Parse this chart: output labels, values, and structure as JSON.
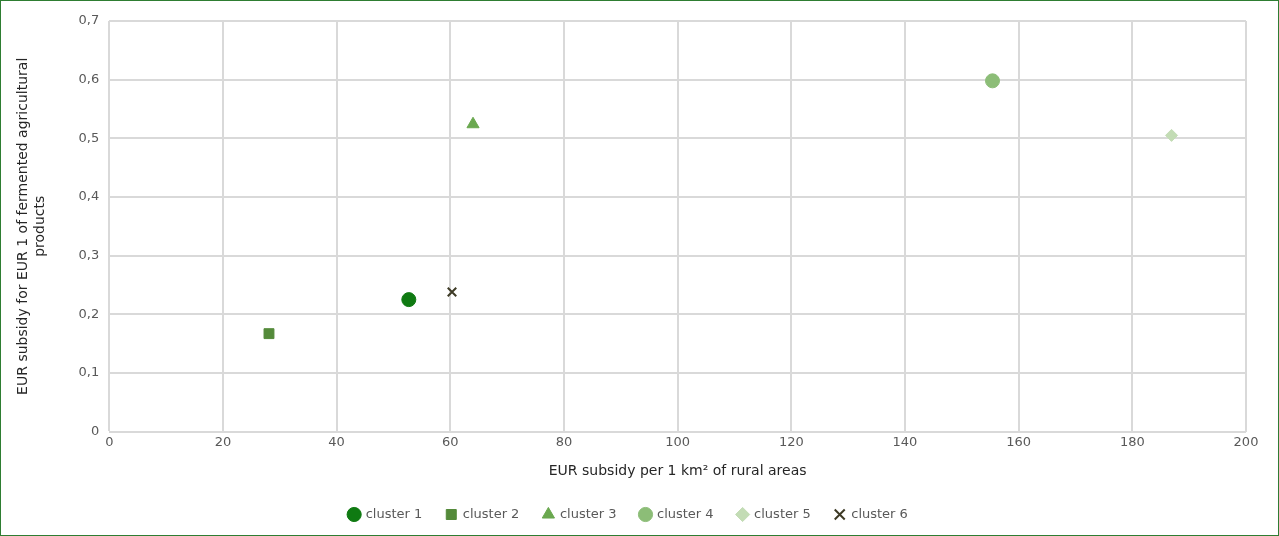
{
  "chart_data": {
    "type": "scatter",
    "xlabel": "EUR subsidy per 1 km² of rural areas",
    "ylabel": "EUR subsidy for EUR 1 of fermented agricultural products",
    "series": [
      {
        "name": "cluster 1",
        "color": "#0f7a12",
        "marker": "circle",
        "x": [
          52.7
        ],
        "values": [
          0.225
        ]
      },
      {
        "name": "cluster 2",
        "color": "#548a3a",
        "marker": "square",
        "x": [
          28.1
        ],
        "values": [
          0.167
        ]
      },
      {
        "name": "cluster 3",
        "color": "#6aa84f",
        "marker": "triangle",
        "x": [
          64.0
        ],
        "values": [
          0.524
        ]
      },
      {
        "name": "cluster 4",
        "color": "#8cbd77",
        "marker": "circle",
        "x": [
          155.4
        ],
        "values": [
          0.598
        ]
      },
      {
        "name": "cluster 5",
        "color": "#c3dcb5",
        "marker": "diamond",
        "x": [
          186.9
        ],
        "values": [
          0.505
        ]
      },
      {
        "name": "cluster 6",
        "color": "#3d3a25",
        "marker": "cross",
        "x": [
          60.3
        ],
        "values": [
          0.238
        ]
      }
    ],
    "xlim": [
      0,
      200
    ],
    "xticks": [
      0,
      20,
      40,
      60,
      80,
      100,
      120,
      140,
      160,
      180,
      200
    ],
    "ylim": [
      0,
      0.7
    ],
    "yticks": [
      0,
      {
        "value": 0.1,
        "label": "0,1"
      },
      {
        "value": 0.2,
        "label": "0,2"
      },
      {
        "value": 0.3,
        "label": "0,3"
      },
      {
        "value": 0.4,
        "label": "0,4"
      },
      {
        "value": 0.5,
        "label": "0,5"
      },
      {
        "value": 0.6,
        "label": "0,6"
      },
      {
        "value": 0.7,
        "label": "0,7"
      }
    ],
    "grid": true,
    "legend": "bottom"
  }
}
